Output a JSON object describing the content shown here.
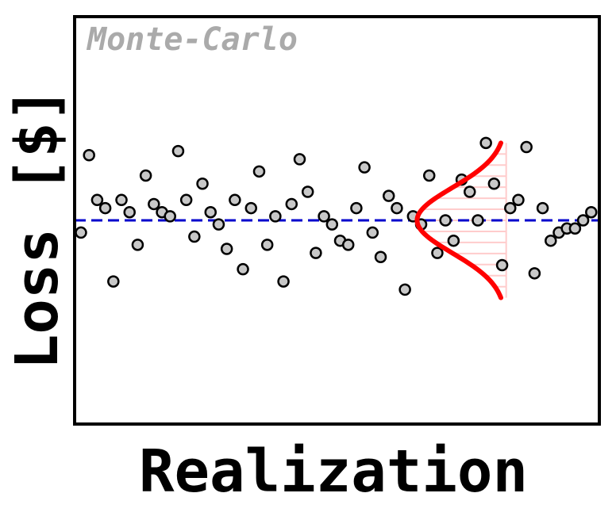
{
  "chart_data": {
    "type": "scatter",
    "annotation": "Monte-Carlo",
    "xlabel": "Realization",
    "ylabel": "Loss [$]",
    "xlim": [
      0,
      64
    ],
    "ylim": [
      -5,
      5
    ],
    "mean": 0,
    "grid": false,
    "colors": {
      "point_fill": "#c8c8c8",
      "point_stroke": "#000000",
      "mean_line": "#0000cc",
      "distribution": "#ff0000",
      "distribution_fill": "#ffcccc",
      "annotation": "#aaaaaa"
    },
    "distribution": {
      "type": "normal",
      "mean": 0,
      "std": 0.8,
      "y_range": [
        -1.9,
        1.9
      ],
      "baseline_x": 52.5,
      "peak_x": 41.5
    },
    "x": [
      0,
      1,
      2,
      3,
      4,
      5,
      6,
      7,
      8,
      9,
      10,
      11,
      12,
      13,
      14,
      15,
      16,
      17,
      18,
      19,
      20,
      21,
      22,
      23,
      24,
      25,
      26,
      27,
      28,
      29,
      30,
      31,
      32,
      33,
      34,
      35,
      36,
      37,
      38,
      39,
      40,
      41,
      42,
      43,
      44,
      45,
      46,
      47,
      48,
      49,
      50,
      51,
      52,
      53,
      54,
      55,
      56,
      57,
      58,
      59,
      60,
      61,
      62,
      63
    ],
    "y": [
      -0.3,
      1.6,
      0.5,
      0.3,
      -1.5,
      0.5,
      0.2,
      -0.6,
      1.1,
      0.4,
      0.2,
      0.1,
      1.7,
      0.5,
      -0.4,
      0.9,
      0.2,
      -0.1,
      -0.7,
      0.5,
      -1.2,
      0.3,
      1.2,
      -0.6,
      0.1,
      -1.5,
      0.4,
      1.5,
      0.7,
      -0.8,
      0.1,
      -0.1,
      -0.5,
      -0.6,
      0.3,
      1.3,
      -0.3,
      -0.9,
      0.6,
      0.3,
      -1.7,
      0.1,
      -0.1,
      1.1,
      -0.8,
      0.0,
      -0.5,
      1.0,
      0.7,
      0.0,
      1.9,
      0.9,
      -1.1,
      0.3,
      0.5,
      1.8,
      -1.3,
      0.3,
      -0.5,
      -0.3,
      -0.2,
      -0.2,
      0.0,
      0.2
    ]
  }
}
